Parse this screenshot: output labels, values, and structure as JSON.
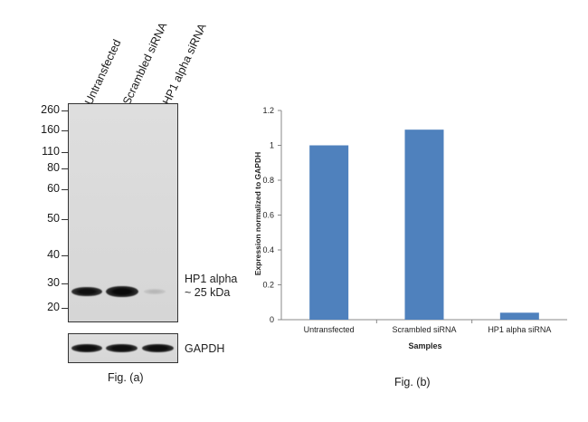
{
  "figure_a": {
    "caption": "Fig. (a)",
    "lanes": [
      "Untransfected",
      "Scrambled siRNA",
      "HP1 alpha siRNA"
    ],
    "markers": [
      "260",
      "160",
      "110",
      "80",
      "60",
      "50",
      "40",
      "30",
      "20"
    ],
    "band_label_line1": "HP1 alpha",
    "band_label_line2": "~ 25 kDa",
    "control_label": "GAPDH"
  },
  "figure_b": {
    "caption": "Fig. (b)"
  },
  "chart_data": {
    "type": "bar",
    "categories": [
      "Untransfected",
      "Scrambled siRNA",
      "HP1 alpha siRNA"
    ],
    "values": [
      1.0,
      1.09,
      0.04
    ],
    "title": "",
    "xlabel": "Samples",
    "ylabel": "Expression normalized to GAPDH",
    "ylim": [
      0,
      1.2
    ],
    "yticks": [
      "0",
      "0.2",
      "0.4",
      "0.6",
      "0.8",
      "1",
      "1.2"
    ],
    "grid": false,
    "bar_color": "#4f81bd"
  }
}
